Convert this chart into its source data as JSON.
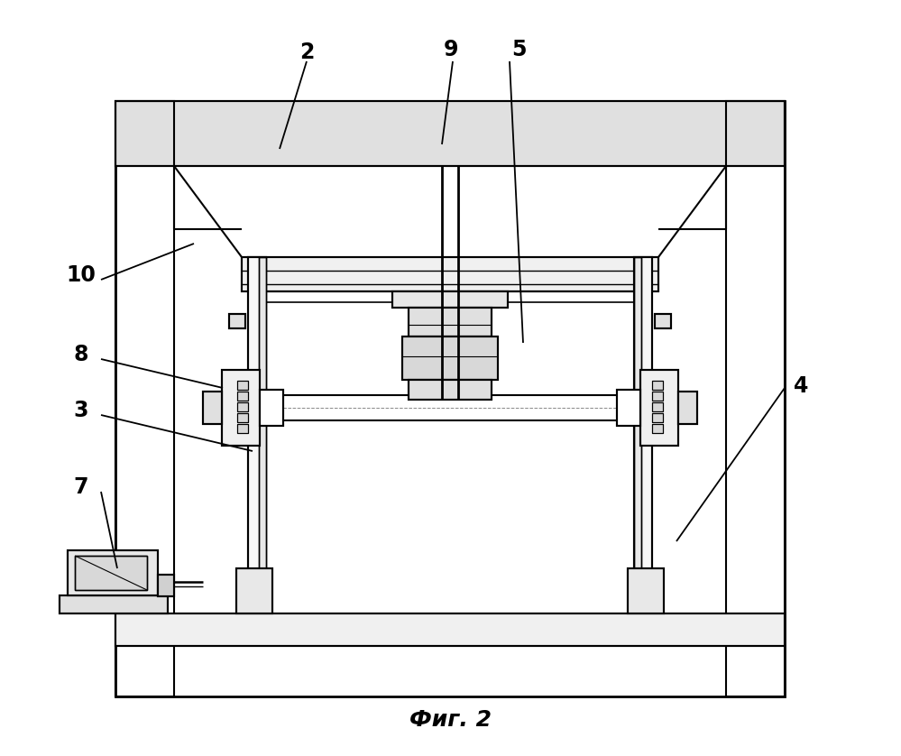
{
  "figure_label": "Фиг. 2",
  "bg": "#ffffff",
  "lc": "#000000",
  "fig_width": 9.99,
  "fig_height": 8.38
}
